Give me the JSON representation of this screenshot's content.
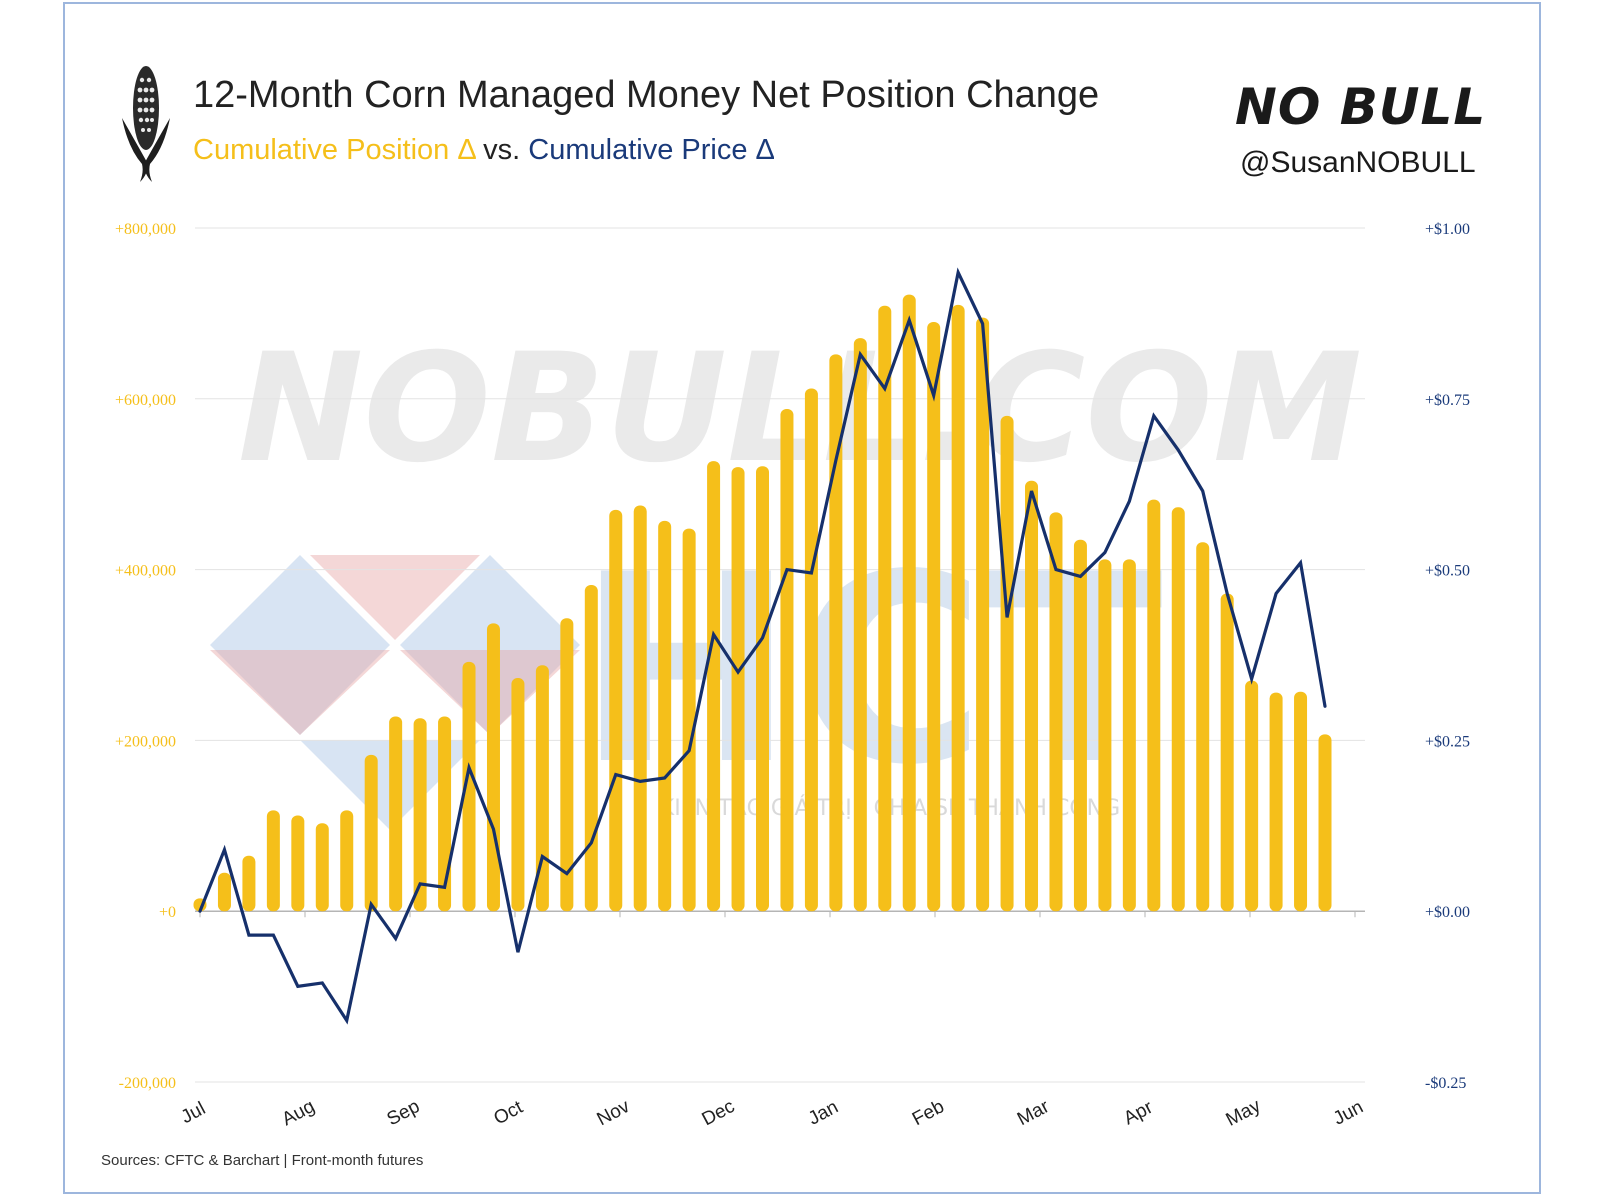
{
  "header": {
    "title": "12-Month Corn Managed Money Net Position Change",
    "subtitle_position": "Cumulative Position Δ",
    "subtitle_vs": " vs. ",
    "subtitle_price": "Cumulative Price Δ",
    "brand": "NO BULL",
    "handle": "@SusanNOBULL"
  },
  "footer": {
    "source": "Sources: CFTC & Barchart | Front-month futures"
  },
  "watermarks": {
    "site": "NOBULL.COM",
    "logo_text": "HCT",
    "logo_tagline": "KIẾN TẠO GIÁ TRỊ - CHIA SẺ THÀNH CÔNG"
  },
  "colors": {
    "position_bars": "#f5bf1a",
    "price_line": "#16306b",
    "left_axis_text": "#f5bf1a",
    "right_axis_text": "#1a3a7a"
  },
  "chart_data": {
    "type": "bar",
    "title": "12-Month Corn Managed Money Net Position Change",
    "subtitle": "Cumulative Position Δ vs. Cumulative Price Δ",
    "x_tick_labels": [
      "Jul",
      "Aug",
      "Sep",
      "Oct",
      "Nov",
      "Dec",
      "Jan",
      "Feb",
      "Mar",
      "Apr",
      "May",
      "Jun"
    ],
    "y_left": {
      "range": [
        -200000,
        800000
      ],
      "tick_values": [
        -200000,
        0,
        200000,
        400000,
        600000,
        800000
      ],
      "tick_labels": [
        "-200,000",
        "+0",
        "+200,000",
        "+400,000",
        "+600,000",
        "+800,000"
      ]
    },
    "y_right": {
      "range": [
        -0.25,
        1.0
      ],
      "tick_values": [
        -0.25,
        0,
        0.25,
        0.5,
        0.75,
        1.0
      ],
      "tick_labels": [
        "-$0.25",
        "+$0.00",
        "+$0.25",
        "+$0.50",
        "+$0.75",
        "+$1.00"
      ]
    },
    "grid": true,
    "series": [
      {
        "name": "Cumulative Position Δ",
        "type": "bar",
        "axis": "left",
        "values": [
          15000,
          45000,
          65000,
          118000,
          112000,
          103000,
          118000,
          183000,
          228000,
          226000,
          228000,
          292000,
          337000,
          273000,
          288000,
          343000,
          382000,
          470000,
          475000,
          457000,
          448000,
          527000,
          520000,
          521000,
          588000,
          612000,
          652000,
          671000,
          709000,
          722000,
          690000,
          710000,
          695000,
          580000,
          504000,
          467000,
          435000,
          412000,
          412000,
          482000,
          473000,
          432000,
          372000,
          270000,
          256000,
          257000,
          207000
        ]
      },
      {
        "name": "Cumulative Price Δ",
        "type": "line",
        "axis": "right",
        "values": [
          0.0,
          0.09,
          -0.035,
          -0.035,
          -0.11,
          -0.105,
          -0.16,
          0.01,
          -0.04,
          0.04,
          0.035,
          0.21,
          0.12,
          -0.06,
          0.08,
          0.055,
          0.1,
          0.2,
          0.19,
          0.195,
          0.235,
          0.405,
          0.35,
          0.4,
          0.5,
          0.495,
          0.66,
          0.815,
          0.765,
          0.865,
          0.755,
          0.935,
          0.86,
          0.43,
          0.615,
          0.5,
          0.49,
          0.525,
          0.6,
          0.725,
          0.675,
          0.615,
          0.465,
          0.34,
          0.465,
          0.51,
          0.3
        ]
      }
    ]
  }
}
